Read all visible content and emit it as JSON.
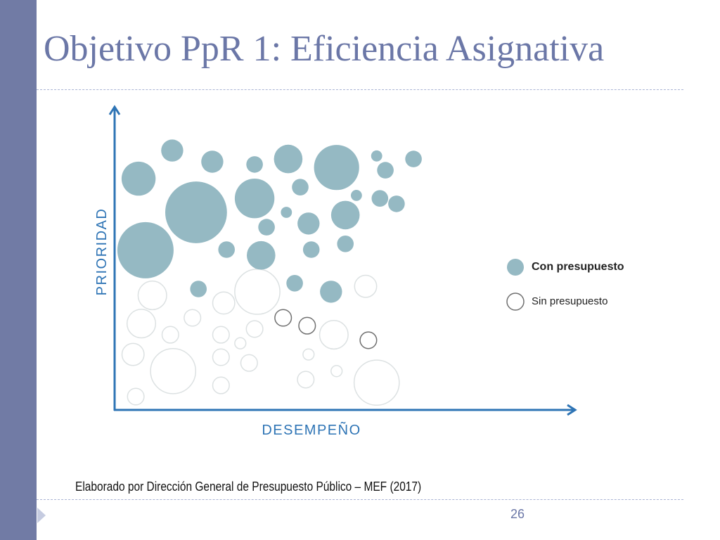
{
  "slide": {
    "title": "Objetivo PpR 1: Eficiencia Asignativa",
    "source": "Elaborado por Dirección General de Presupuesto Público – MEF (2017)",
    "page_number": "26"
  },
  "colors": {
    "sidebar": "#717ba5",
    "title": "#6b77a7",
    "axis": "#2e74b5",
    "divider": "#aab4d4",
    "marker": "#c5cbe0"
  },
  "icons": {
    "slide_marker": "triangle-marker-icon"
  },
  "chart_data": {
    "type": "scatter",
    "xlabel": "DESEMPEÑO",
    "ylabel": "PRIORIDAD",
    "xlim": [
      0,
      100
    ],
    "ylim": [
      0,
      100
    ],
    "grid": false,
    "legend": "right",
    "series": [
      {
        "name": "Con presupuesto",
        "fill": "#95b9c3",
        "stroke": null,
        "x": [
          12.5,
          21.2,
          30.4,
          37.7,
          48.2,
          56.9,
          58.8,
          64.9,
          5.2,
          17.7,
          30.4,
          40.3,
          52.5,
          57.6,
          61.2,
          37.3,
          50.1,
          42.1,
          33.0,
          6.7,
          24.3,
          31.8,
          42.7,
          50.1,
          18.2,
          39.1,
          47.0
        ],
        "y": [
          85.6,
          81.9,
          81.0,
          82.8,
          80.0,
          83.8,
          79.1,
          82.8,
          76.3,
          65.2,
          69.8,
          73.5,
          70.8,
          69.8,
          68.0,
          65.2,
          64.3,
          61.5,
          60.3,
          52.7,
          52.9,
          51.0,
          52.9,
          54.8,
          39.9,
          41.8,
          39.0
        ],
        "size": [
          2.4,
          2.4,
          1.8,
          3.1,
          4.9,
          1.2,
          1.8,
          1.8,
          3.7,
          6.7,
          4.3,
          1.8,
          1.2,
          1.8,
          1.8,
          1.2,
          3.1,
          2.4,
          1.8,
          6.1,
          1.8,
          3.1,
          1.8,
          1.8,
          1.8,
          1.8,
          2.4
        ]
      },
      {
        "name": "Sin presupuesto",
        "fill": null,
        "stroke": "#707070",
        "x": [
          36.6,
          41.8,
          55.1
        ],
        "y": [
          30.4,
          27.8,
          23.0
        ],
        "size": [
          1.8,
          1.8,
          1.8
        ]
      },
      {
        "name": "",
        "fill": null,
        "stroke": "#dce1e2",
        "x": [
          8.2,
          31.0,
          23.7,
          54.5,
          5.8,
          16.9,
          12.1,
          23.1,
          30.4,
          27.3,
          47.6,
          4.0,
          12.7,
          23.1,
          29.2,
          42.1,
          48.2,
          41.5,
          56.9,
          23.1,
          4.6
        ],
        "y": [
          37.8,
          39.0,
          35.3,
          40.8,
          28.5,
          30.4,
          24.8,
          24.8,
          26.7,
          22.0,
          24.8,
          18.3,
          12.8,
          17.4,
          15.5,
          18.3,
          12.8,
          10.0,
          9.0,
          8.1,
          4.4
        ],
        "size": [
          3.1,
          4.9,
          2.4,
          2.4,
          3.1,
          1.8,
          1.8,
          1.8,
          1.8,
          1.2,
          3.1,
          2.4,
          4.9,
          1.8,
          1.8,
          1.2,
          1.2,
          1.8,
          4.9,
          1.8,
          1.8
        ]
      }
    ]
  }
}
